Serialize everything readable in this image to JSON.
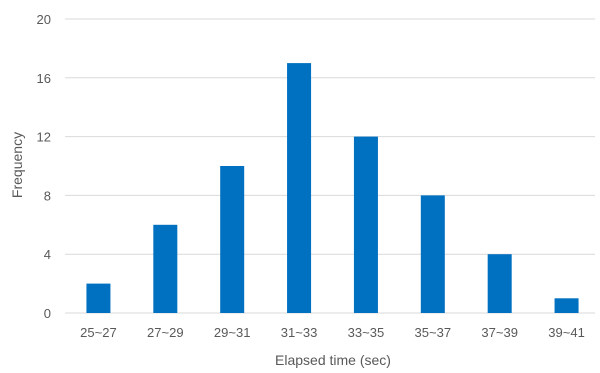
{
  "chart_data": {
    "type": "bar",
    "categories": [
      "25~27",
      "27~29",
      "29~31",
      "31~33",
      "33~35",
      "35~37",
      "37~39",
      "39~41"
    ],
    "values": [
      2,
      6,
      10,
      17,
      12,
      8,
      4,
      1
    ],
    "xlabel": "Elapsed time (sec)",
    "ylabel": "Frequency",
    "ylim": [
      0,
      20
    ],
    "yticks": [
      0,
      4,
      8,
      12,
      16,
      20
    ],
    "grid": true,
    "colors": {
      "bar": "#0070C0",
      "grid": "#D9D9D9",
      "text": "#595959"
    }
  }
}
